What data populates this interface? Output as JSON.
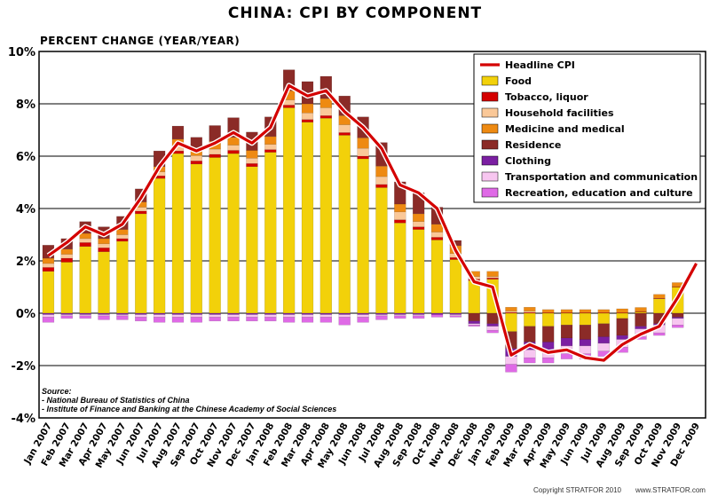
{
  "chart_data": {
    "type": "bar",
    "title": "CHINA: CPI BY COMPONENT",
    "subtitle": "PERCENT CHANGE (YEAR/YEAR)",
    "ylim": [
      -4,
      10
    ],
    "yticks": [
      "-4%",
      "-2%",
      "0%",
      "2%",
      "4%",
      "6%",
      "8%",
      "10%"
    ],
    "grid": "horizontal",
    "legend_position": "top-right",
    "categories": [
      "Jan 2007",
      "Feb 2007",
      "Mar 2007",
      "Apr 2007",
      "May 2007",
      "Jun 2007",
      "Jul 2007",
      "Aug 2007",
      "Sep 2007",
      "Oct 2007",
      "Nov 2007",
      "Dec 2007",
      "Jan 2008",
      "Feb 2008",
      "Mar 2008",
      "Apr 2008",
      "May 2008",
      "Jun 2008",
      "Jul 2008",
      "Aug 2008",
      "Sep 2008",
      "Oct 2008",
      "Nov 2008",
      "Dec 2008",
      "Jan 2009",
      "Feb 2009",
      "Mar 2009",
      "Apr 2009",
      "May 2009",
      "Jun 2009",
      "Jul 2009",
      "Aug 2009",
      "Sep 2009",
      "Oct 2009",
      "Nov 2009",
      "Dec 2009"
    ],
    "x_tick_labels": [
      "Jan 2007",
      "Feb 2007",
      "Mar 2007",
      "Apr 2007",
      "May 2007",
      "Jun 2007",
      "Jul 2007",
      "Aug 2007",
      "Sep 2007",
      "Oct 2007",
      "Nov 2007",
      "Dec 2007",
      "Jan 2008",
      "Feb 2008",
      "Mar 2008",
      "Apr 2008",
      "May 2008",
      "Jun 2008",
      "Jul 2008",
      "Aug 2008",
      "Sep 2008",
      "Oct 2008",
      "Nov 2008",
      "Dec 2008",
      "Jan 2009",
      "Feb 2009",
      "Mar 2009",
      "Apr 2009",
      "May 2009",
      "Jun 2009",
      "Jul 2009",
      "Aug 2009",
      "Sep 2009",
      "Oct 2009",
      "Nov 2009",
      "Dec 2009"
    ],
    "series": [
      {
        "name": "Food",
        "color": "#f2d10a",
        "values": [
          1.6,
          1.95,
          2.55,
          2.35,
          2.75,
          3.8,
          5.15,
          6.1,
          5.7,
          5.95,
          6.1,
          5.6,
          6.15,
          7.85,
          7.3,
          7.45,
          6.8,
          5.9,
          4.8,
          3.45,
          3.2,
          2.8,
          2.05,
          1.25,
          1.3,
          -0.7,
          -0.5,
          -0.5,
          -0.45,
          -0.45,
          -0.4,
          -0.2,
          0.05,
          0.55,
          1.0,
          0
        ]
      },
      {
        "name": "Tobacco, liquor",
        "color": "#d40000",
        "values": [
          0.15,
          0.15,
          0.15,
          0.15,
          0.1,
          0.1,
          0.1,
          0.1,
          0.12,
          0.12,
          0.12,
          0.12,
          0.1,
          0.1,
          0.1,
          0.1,
          0.1,
          0.1,
          0.12,
          0.12,
          0.1,
          0.1,
          0.08,
          0.05,
          0.05,
          0.03,
          0.03,
          0.02,
          0.02,
          0.02,
          0.02,
          0.02,
          0.02,
          0.02,
          0.02,
          0
        ]
      },
      {
        "name": "Household facilities",
        "color": "#fac898",
        "values": [
          0.15,
          0.15,
          0.15,
          0.15,
          0.15,
          0.15,
          0.15,
          0.2,
          0.2,
          0.2,
          0.2,
          0.2,
          0.2,
          0.2,
          0.25,
          0.3,
          0.3,
          0.3,
          0.3,
          0.3,
          0.2,
          0.2,
          0.15,
          0.1,
          0.05,
          0.05,
          0.05,
          0,
          0,
          0,
          0,
          0,
          0,
          0,
          0,
          0
        ]
      },
      {
        "name": "Medicine and medical",
        "color": "#ee8a12",
        "values": [
          0.2,
          0.2,
          0.2,
          0.2,
          0.2,
          0.2,
          0.2,
          0.25,
          0.25,
          0.3,
          0.3,
          0.3,
          0.3,
          0.35,
          0.35,
          0.35,
          0.35,
          0.4,
          0.4,
          0.3,
          0.3,
          0.3,
          0.3,
          0.2,
          0.2,
          0.15,
          0.15,
          0.12,
          0.12,
          0.12,
          0.12,
          0.15,
          0.15,
          0.15,
          0.15,
          0
        ]
      },
      {
        "name": "Residence",
        "color": "#8b2b27",
        "values": [
          0.5,
          0.4,
          0.45,
          0.45,
          0.5,
          0.5,
          0.6,
          0.5,
          0.45,
          0.6,
          0.75,
          0.7,
          0.75,
          0.8,
          0.85,
          0.85,
          0.75,
          0.8,
          0.9,
          0.85,
          0.8,
          0.65,
          0.2,
          -0.3,
          -0.4,
          -0.65,
          -0.6,
          -0.6,
          -0.5,
          -0.55,
          -0.5,
          -0.65,
          -0.5,
          -0.4,
          -0.15,
          0
        ]
      },
      {
        "name": "Clothing",
        "color": "#7b1fa2",
        "values": [
          -0.05,
          -0.05,
          -0.05,
          -0.05,
          -0.05,
          -0.05,
          -0.05,
          -0.05,
          -0.05,
          -0.05,
          -0.05,
          -0.05,
          -0.05,
          -0.05,
          -0.05,
          -0.05,
          -0.05,
          -0.05,
          -0.05,
          -0.05,
          -0.05,
          -0.05,
          -0.05,
          -0.1,
          -0.1,
          -0.3,
          -0.3,
          -0.3,
          -0.3,
          -0.25,
          -0.25,
          -0.15,
          -0.1,
          -0.05,
          -0.05,
          0
        ]
      },
      {
        "name": "Transportation and communication",
        "color": "#f7c6f0",
        "values": [
          -0.1,
          -0.05,
          -0.05,
          -0.05,
          -0.05,
          -0.1,
          -0.1,
          -0.1,
          -0.1,
          -0.1,
          -0.1,
          -0.1,
          -0.1,
          -0.1,
          -0.1,
          -0.1,
          -0.1,
          -0.1,
          -0.05,
          -0.05,
          -0.05,
          0,
          -0.05,
          -0.05,
          -0.15,
          -0.3,
          -0.3,
          -0.3,
          -0.3,
          -0.3,
          -0.3,
          -0.3,
          -0.3,
          -0.3,
          -0.25,
          0
        ]
      },
      {
        "name": "Recreation, education and culture",
        "color": "#df6ae6",
        "values": [
          -0.2,
          -0.1,
          -0.1,
          -0.15,
          -0.15,
          -0.15,
          -0.2,
          -0.2,
          -0.2,
          -0.15,
          -0.15,
          -0.15,
          -0.15,
          -0.2,
          -0.2,
          -0.2,
          -0.3,
          -0.2,
          -0.15,
          -0.1,
          -0.1,
          -0.1,
          -0.05,
          -0.05,
          -0.1,
          -0.3,
          -0.2,
          -0.2,
          -0.2,
          -0.2,
          -0.2,
          -0.2,
          -0.1,
          -0.1,
          -0.1,
          0
        ]
      },
      {
        "name": "Headline CPI",
        "type": "line",
        "color": "#d40000",
        "values": [
          2.2,
          2.7,
          3.3,
          3.0,
          3.4,
          4.4,
          5.6,
          6.5,
          6.2,
          6.5,
          6.9,
          6.5,
          7.1,
          8.7,
          8.3,
          8.5,
          7.7,
          7.1,
          6.3,
          4.9,
          4.6,
          4.0,
          2.4,
          1.2,
          1.0,
          -1.6,
          -1.2,
          -1.5,
          -1.4,
          -1.7,
          -1.8,
          -1.2,
          -0.8,
          -0.5,
          0.6,
          1.9
        ]
      }
    ],
    "legend_order": [
      "Headline CPI",
      "Food",
      "Tobacco, liquor",
      "Household facilities",
      "Medicine and medical",
      "Residence",
      "Clothing",
      "Transportation and communication",
      "Recreation, education and culture"
    ]
  },
  "source": {
    "heading": "Source:",
    "lines": [
      "- National Bureau of Statistics of China",
      "- Institute of Finance and Banking at the Chinese Academy of Social Sciences"
    ]
  },
  "footer": {
    "copyright": "Copyright STRATFOR 2010",
    "website": "www.STRATFOR.com"
  }
}
